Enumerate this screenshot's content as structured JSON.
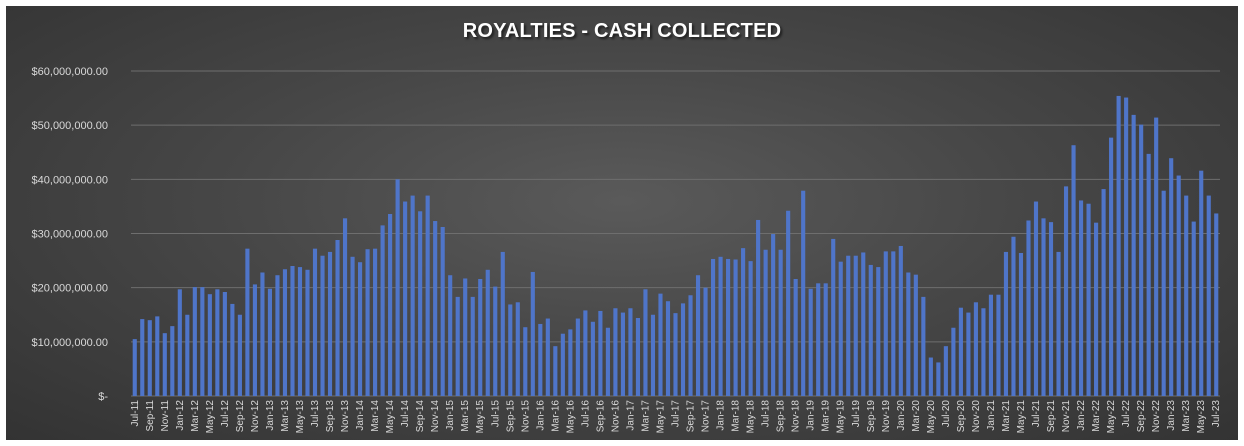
{
  "chart_data": {
    "type": "bar",
    "title": "ROYALTIES  - CASH COLLECTED",
    "xlabel": "",
    "ylabel": "",
    "ylim": [
      0,
      60000000
    ],
    "yticks": [
      0,
      10000000,
      20000000,
      30000000,
      40000000,
      50000000,
      60000000
    ],
    "ytick_labels": [
      "$-",
      "$10,000,000.00",
      "$20,000,000.00",
      "$30,000,000.00",
      "$40,000,000.00",
      "$50,000,000.00",
      "$60,000,000.00"
    ],
    "grid": true,
    "legend": "none",
    "bar_color": "#4f75c9",
    "gridline_color": "#6e6e6e",
    "xtick_labels": [
      "Jul-11",
      "Sep-11",
      "Nov-11",
      "Jan-12",
      "Mar-12",
      "May-12",
      "Jul-12",
      "Sep-12",
      "Nov-12",
      "Jan-13",
      "Mar-13",
      "May-13",
      "Jul-13",
      "Sep-13",
      "Nov-13",
      "Jan-14",
      "Mar-14",
      "May-14",
      "Jul-14",
      "Sep-14",
      "Nov-14",
      "Jan-15",
      "Mar-15",
      "May-15",
      "Jul-15",
      "Sep-15",
      "Nov-15",
      "Jan-16",
      "Mar-16",
      "May-16",
      "Jul-16",
      "Sep-16",
      "Nov-16",
      "Jan-17",
      "Mar-17",
      "May-17",
      "Jul-17",
      "Sep-17",
      "Nov-17",
      "Jan-18",
      "Mar-18",
      "May-18",
      "Jul-18",
      "Sep-18",
      "Nov-18",
      "Jan-19",
      "Mar-19",
      "May-19",
      "Jul-19",
      "Sep-19",
      "Nov-19",
      "Jan-20",
      "Mar-20",
      "May-20",
      "Jul-20",
      "Sep-20",
      "Nov-20",
      "Jan-21",
      "Mar-21",
      "May-21",
      "Jul-21",
      "Sep-21",
      "Nov-21",
      "Jan-22",
      "Mar-22",
      "May-22",
      "Jul-22",
      "Sep-22",
      "Nov-22",
      "Jan-23",
      "Mar-23",
      "May-23",
      "Jul-23"
    ],
    "categories": [
      "Jul-11",
      "Aug-11",
      "Sep-11",
      "Oct-11",
      "Nov-11",
      "Dec-11",
      "Jan-12",
      "Feb-12",
      "Mar-12",
      "Apr-12",
      "May-12",
      "Jun-12",
      "Jul-12",
      "Aug-12",
      "Sep-12",
      "Oct-12",
      "Nov-12",
      "Dec-12",
      "Jan-13",
      "Feb-13",
      "Mar-13",
      "Apr-13",
      "May-13",
      "Jun-13",
      "Jul-13",
      "Aug-13",
      "Sep-13",
      "Oct-13",
      "Nov-13",
      "Dec-13",
      "Jan-14",
      "Feb-14",
      "Mar-14",
      "Apr-14",
      "May-14",
      "Jun-14",
      "Jul-14",
      "Aug-14",
      "Sep-14",
      "Oct-14",
      "Nov-14",
      "Dec-14",
      "Jan-15",
      "Feb-15",
      "Mar-15",
      "Apr-15",
      "May-15",
      "Jun-15",
      "Jul-15",
      "Aug-15",
      "Sep-15",
      "Oct-15",
      "Nov-15",
      "Dec-15",
      "Jan-16",
      "Feb-16",
      "Mar-16",
      "Apr-16",
      "May-16",
      "Jun-16",
      "Jul-16",
      "Aug-16",
      "Sep-16",
      "Oct-16",
      "Nov-16",
      "Dec-16",
      "Jan-17",
      "Feb-17",
      "Mar-17",
      "Apr-17",
      "May-17",
      "Jun-17",
      "Jul-17",
      "Aug-17",
      "Sep-17",
      "Oct-17",
      "Nov-17",
      "Dec-17",
      "Jan-18",
      "Feb-18",
      "Mar-18",
      "Apr-18",
      "May-18",
      "Jun-18",
      "Jul-18",
      "Aug-18",
      "Sep-18",
      "Oct-18",
      "Nov-18",
      "Dec-18",
      "Jan-19",
      "Feb-19",
      "Mar-19",
      "Apr-19",
      "May-19",
      "Jun-19",
      "Jul-19",
      "Aug-19",
      "Sep-19",
      "Oct-19",
      "Nov-19",
      "Dec-19",
      "Jan-20",
      "Feb-20",
      "Mar-20",
      "Apr-20",
      "May-20",
      "Jun-20",
      "Jul-20",
      "Aug-20",
      "Sep-20",
      "Oct-20",
      "Nov-20",
      "Dec-20",
      "Jan-21",
      "Feb-21",
      "Mar-21",
      "Apr-21",
      "May-21",
      "Jun-21",
      "Jul-21",
      "Aug-21",
      "Sep-21",
      "Oct-21",
      "Nov-21",
      "Dec-21",
      "Jan-22",
      "Feb-22",
      "Mar-22",
      "Apr-22",
      "May-22",
      "Jun-22",
      "Jul-22",
      "Aug-22",
      "Sep-22",
      "Oct-22",
      "Nov-22",
      "Dec-22",
      "Jan-23",
      "Feb-23",
      "Mar-23",
      "Apr-23",
      "May-23",
      "Jun-23",
      "Jul-23"
    ],
    "values": [
      10500000,
      14200000,
      14000000,
      14700000,
      11600000,
      12900000,
      19700000,
      15000000,
      20100000,
      20100000,
      18800000,
      19700000,
      19200000,
      17000000,
      15000000,
      27200000,
      20600000,
      22800000,
      19800000,
      22300000,
      23400000,
      24000000,
      23800000,
      23300000,
      27200000,
      25900000,
      26600000,
      28800000,
      32800000,
      25700000,
      24700000,
      27100000,
      27200000,
      31500000,
      33600000,
      40000000,
      35900000,
      37000000,
      34100000,
      37000000,
      32300000,
      31200000,
      22300000,
      18300000,
      21700000,
      18300000,
      21600000,
      23300000,
      20200000,
      26600000,
      16900000,
      17300000,
      12700000,
      22900000,
      13300000,
      14300000,
      9200000,
      11500000,
      12300000,
      14300000,
      15800000,
      13700000,
      15700000,
      12600000,
      16200000,
      15400000,
      16200000,
      14400000,
      19700000,
      15000000,
      18900000,
      17500000,
      15300000,
      17100000,
      18600000,
      22300000,
      20000000,
      25300000,
      25700000,
      25300000,
      25200000,
      27300000,
      24900000,
      32500000,
      27000000,
      29900000,
      27000000,
      34200000,
      21600000,
      37900000,
      19800000,
      20800000,
      20800000,
      29000000,
      24800000,
      25900000,
      25900000,
      26500000,
      24200000,
      23800000,
      26700000,
      26700000,
      27700000,
      22800000,
      22400000,
      18300000,
      7100000,
      6200000,
      9200000,
      12600000,
      16300000,
      15400000,
      17300000,
      16200000,
      18700000,
      18700000,
      26600000,
      29400000,
      26400000,
      32400000,
      35900000,
      32800000,
      32100000,
      26600000,
      38700000,
      46300000,
      36100000,
      35500000,
      32000000,
      38200000,
      47700000,
      55400000,
      55100000,
      51900000,
      50100000,
      44700000,
      51400000,
      37900000,
      43900000,
      40700000,
      37000000,
      32200000,
      41600000,
      37000000,
      33700000
    ]
  }
}
